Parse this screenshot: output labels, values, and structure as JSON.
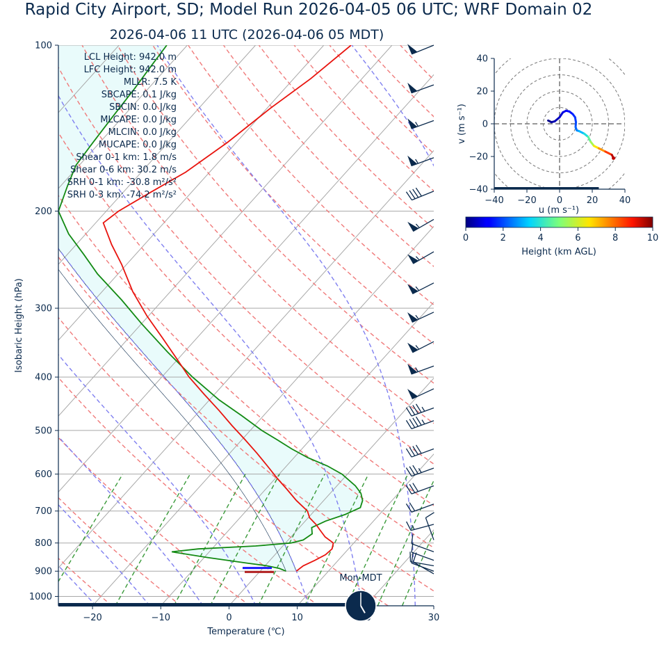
{
  "title": "Rapid City Airport, SD; Model Run 2026-04-05 06 UTC; WRF Domain 02",
  "subtitle": "2026-04-06 11 UTC  (2026-04-06 05 MDT)",
  "colors": {
    "text": "#0b2a4d",
    "temperature": "#e8140e",
    "dewpoint": "#138a13",
    "dry_adiabat": "#f07a7a",
    "moist_adiabat": "#7f7ff0",
    "mixing_ratio": "#3a9a3a",
    "cape_fill": "#e9fbfb",
    "wind_barb": "#0b2a4d",
    "lcl_marker": "#1a1aff",
    "parcel_base_marker": "#b22222"
  },
  "skewt": {
    "xlabel": "Temperature (℃)",
    "ylabel": "Isobaric Height (hPa)",
    "xlim": [
      -25,
      30
    ],
    "ylim": [
      1040,
      100
    ],
    "xticks": [
      -20,
      -10,
      0,
      10,
      20,
      30
    ],
    "yticks": [
      100,
      200,
      300,
      400,
      500,
      600,
      700,
      800,
      900,
      1000
    ],
    "grid": true,
    "stats": [
      "LCL Height: 942.0 m",
      "LFC Height: 942.0 m",
      "MLLR: 7.5 K",
      "SBCAPE: 0.1 J/kg",
      "SBCIN: 0.0 J/kg",
      "MLCAPE: 0.0 J/kg",
      "MLCIN: 0.0 J/kg",
      "MUCAPE: 0.0 J/kg",
      "Shear 0-1 km: 1.8 m/s",
      "Shear 0-6 km: 30.2 m/s",
      "SRH 0-1 km: -30.8 m²/s²",
      "SRH 0-3 km: -74.2 m²/s²"
    ],
    "clock_label": "Mon-MDT",
    "clock_time": {
      "hour": 5,
      "minute": 0
    }
  },
  "chart_data": [
    {
      "type": "line",
      "title": "",
      "xlabel": "Temperature (℃)",
      "ylabel": "Isobaric Height (hPa)",
      "series": [
        {
          "key": "temperature",
          "pressure": [
            900,
            880,
            860,
            840,
            820,
            800,
            780,
            760,
            740,
            720,
            700,
            670,
            640,
            610,
            580,
            550,
            520,
            490,
            460,
            430,
            400,
            370,
            340,
            310,
            280,
            250,
            230,
            210,
            200,
            185,
            170,
            150,
            130,
            115,
            100
          ],
          "temp": [
            5.3,
            5.6,
            6.6,
            7.4,
            7.6,
            7.0,
            5.0,
            3.5,
            2.0,
            0.2,
            -1.0,
            -4.0,
            -6.8,
            -9.8,
            -12.8,
            -16.0,
            -19.5,
            -23.3,
            -27.2,
            -31.5,
            -36.0,
            -40.3,
            -45.0,
            -50.2,
            -55.5,
            -60.7,
            -64.8,
            -68.9,
            -68.2,
            -66.0,
            -63.5,
            -61.3,
            -59.5,
            -57.5,
            -56.0
          ]
        },
        {
          "key": "dewpoint",
          "pressure": [
            900,
            890,
            880,
            870,
            850,
            830,
            820,
            810,
            800,
            790,
            770,
            750,
            730,
            710,
            690,
            670,
            650,
            630,
            600,
            580,
            560,
            540,
            520,
            500,
            470,
            440,
            400,
            360,
            320,
            290,
            260,
            240,
            220,
            200,
            180,
            165,
            150,
            135,
            120,
            110,
            100
          ],
          "temp": [
            3.8,
            2.5,
            0.3,
            -3.0,
            -9.5,
            -15.5,
            -12.0,
            -4.0,
            0.8,
            2.2,
            2.7,
            1.8,
            3.0,
            5.0,
            6.3,
            5.7,
            4.5,
            2.7,
            -0.8,
            -4.0,
            -8.0,
            -11.5,
            -14.8,
            -18.3,
            -23.2,
            -28.6,
            -35.5,
            -42.5,
            -50.0,
            -56.0,
            -63.0,
            -67.5,
            -72.5,
            -77.0,
            -79.0,
            -80.5,
            -81.0,
            -81.5,
            -82.0,
            -82.5,
            -83.0
          ]
        }
      ]
    },
    {
      "type": "scatter",
      "title": "",
      "xlabel": "u (m s⁻¹)",
      "ylabel": "v (m s⁻¹)",
      "xlim": [
        -40,
        40
      ],
      "ylim": [
        -40,
        40
      ],
      "xticks": [
        -40,
        -20,
        0,
        20,
        40
      ],
      "yticks": [
        -40,
        -20,
        0,
        20,
        40
      ],
      "ring_spacing": 10,
      "u": [
        -7.0,
        -5.0,
        -3.0,
        0.0,
        2.0,
        4.0,
        6.0,
        8.0,
        9.5,
        10.0,
        9.8,
        10.5,
        12.0,
        15.0,
        17.5,
        19.0,
        21.0,
        24.0,
        28.0,
        32.0,
        33.0
      ],
      "v": [
        2.0,
        1.0,
        1.5,
        4.0,
        7.0,
        8.0,
        7.5,
        6.0,
        4.0,
        1.0,
        -2.0,
        -4.0,
        -4.5,
        -6.0,
        -8.0,
        -11.0,
        -13.5,
        -15.0,
        -17.0,
        -19.0,
        -21.0
      ],
      "height_km": [
        0.0,
        0.2,
        0.4,
        0.6,
        0.8,
        1.0,
        1.2,
        1.4,
        1.6,
        1.8,
        2.0,
        2.4,
        2.8,
        3.4,
        4.2,
        5.0,
        6.0,
        7.0,
        8.0,
        9.0,
        10.0
      ],
      "colorbar": {
        "label": "Height (km AGL)",
        "range": [
          0,
          10
        ],
        "ticks": [
          0,
          2,
          4,
          6,
          8,
          10
        ]
      }
    }
  ],
  "wind_barbs": [
    {
      "p": 100,
      "speed_kt": 50,
      "dir": 292
    },
    {
      "p": 118,
      "speed_kt": 50,
      "dir": 290
    },
    {
      "p": 137,
      "speed_kt": 55,
      "dir": 290
    },
    {
      "p": 160,
      "speed_kt": 55,
      "dir": 290
    },
    {
      "p": 184,
      "speed_kt": 40,
      "dir": 292
    },
    {
      "p": 207,
      "speed_kt": 55,
      "dir": 300
    },
    {
      "p": 237,
      "speed_kt": 55,
      "dir": 300
    },
    {
      "p": 270,
      "speed_kt": 55,
      "dir": 297
    },
    {
      "p": 305,
      "speed_kt": 55,
      "dir": 295
    },
    {
      "p": 345,
      "speed_kt": 55,
      "dir": 297
    },
    {
      "p": 382,
      "speed_kt": 55,
      "dir": 290
    },
    {
      "p": 420,
      "speed_kt": 50,
      "dir": 295
    },
    {
      "p": 455,
      "speed_kt": 45,
      "dir": 290
    },
    {
      "p": 480,
      "speed_kt": 45,
      "dir": 290
    },
    {
      "p": 540,
      "speed_kt": 40,
      "dir": 290
    },
    {
      "p": 585,
      "speed_kt": 35,
      "dir": 290
    },
    {
      "p": 630,
      "speed_kt": 30,
      "dir": 290
    },
    {
      "p": 680,
      "speed_kt": 20,
      "dir": 290
    },
    {
      "p": 740,
      "speed_kt": 15,
      "dir": 285
    },
    {
      "p": 790,
      "speed_kt": 10,
      "dir": 200
    },
    {
      "p": 830,
      "speed_kt": 10,
      "dir": 250
    },
    {
      "p": 860,
      "speed_kt": 10,
      "dir": 250
    },
    {
      "p": 880,
      "speed_kt": 10,
      "dir": 260
    },
    {
      "p": 900,
      "speed_kt": 10,
      "dir": 250
    },
    {
      "p": 910,
      "speed_kt": 10,
      "dir": 240
    }
  ]
}
